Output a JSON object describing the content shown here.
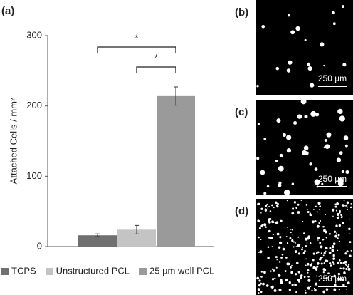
{
  "chart_data": {
    "type": "bar",
    "label": "(a)",
    "y_label": "Attached Cells / mm²",
    "categories": [
      null
    ],
    "series": [
      {
        "name": "TCPS",
        "color": "#707070",
        "values": [
          16
        ],
        "errors": [
          2
        ]
      },
      {
        "name": "Unstructured PCL",
        "color": "#c4c4c4",
        "values": [
          24
        ],
        "errors": [
          6
        ]
      },
      {
        "name": "25 µm well PCL",
        "color": "#9a9a9a",
        "values": [
          214
        ],
        "errors": [
          13
        ]
      }
    ],
    "ylim": [
      0,
      300
    ],
    "yticks": [
      0,
      100,
      200,
      300
    ],
    "annotations": [
      {
        "text": "*",
        "between": [
          0,
          2
        ]
      },
      {
        "text": "*",
        "between": [
          1,
          2
        ]
      }
    ],
    "legend": "bottom"
  },
  "panels": [
    {
      "label": "(b)",
      "scale": "250 µm"
    },
    {
      "label": "(c)",
      "scale": "250 µm"
    },
    {
      "label": "(d)",
      "scale": "250 µm"
    }
  ]
}
